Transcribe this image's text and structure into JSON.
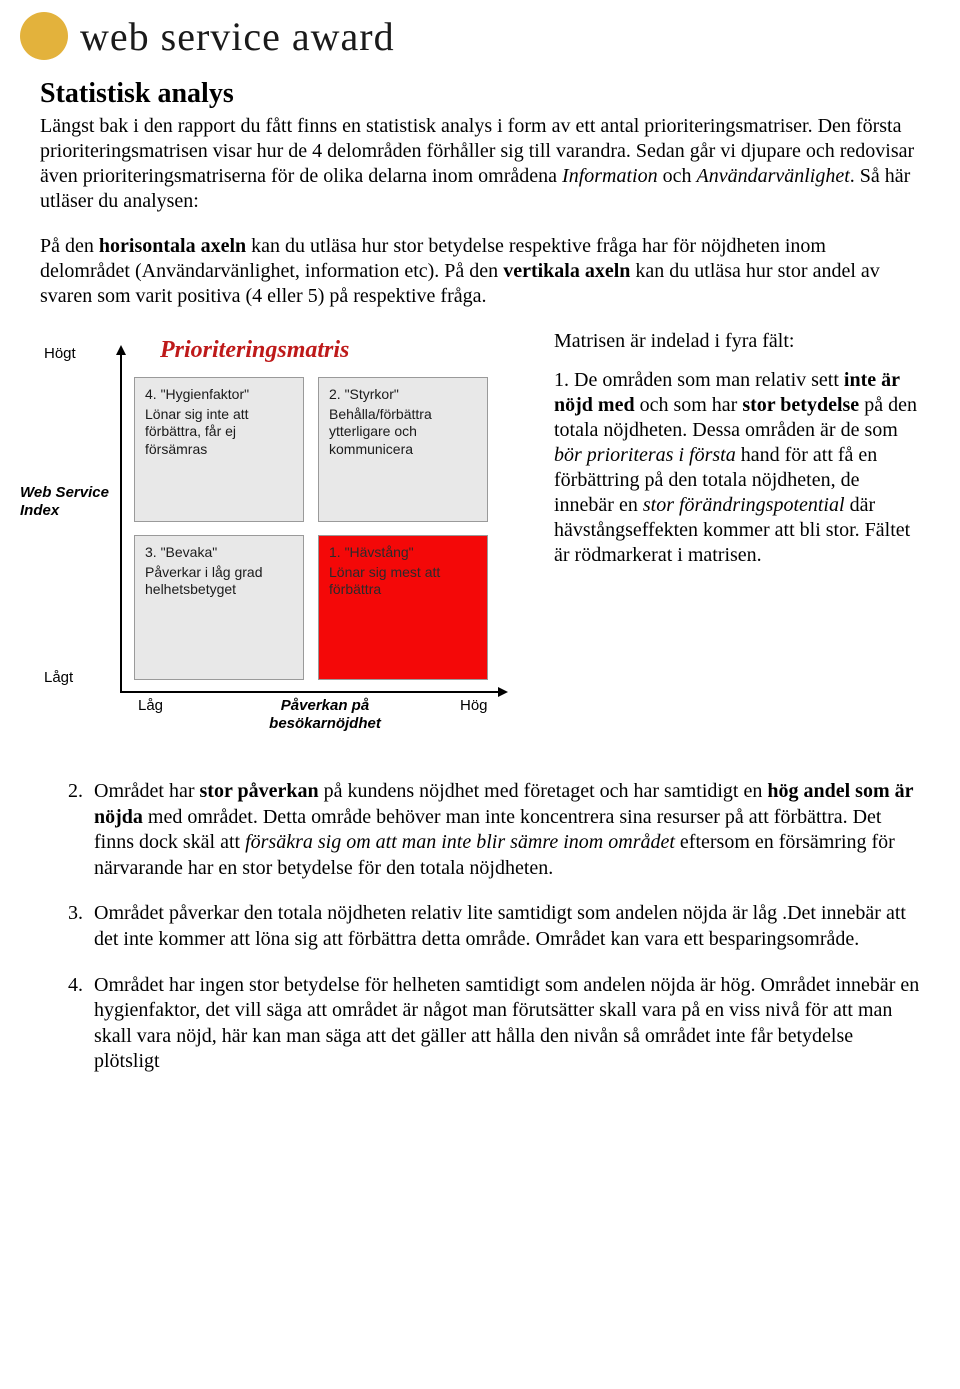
{
  "header": {
    "brand": "web service award",
    "dot_color": "#e3b23c"
  },
  "section_title": "Statistisk analys",
  "intro_plain_1": "Längst bak i den rapport du fått finns en statistisk analys i form av ett antal prioriteringsmatriser. Den första prioriteringsmatrisen visar hur de 4 delområden förhåller sig till varandra. Sedan går vi djupare och redovisar även prioriteringsmatriserna för de olika delarna inom områdena ",
  "intro_italic_1": "Information",
  "intro_plain_2": " och ",
  "intro_italic_2": "Användarvänlighet",
  "intro_plain_3": ". Så här utläser du analysen:",
  "axes_para": {
    "p1": "På den ",
    "b1": "horisontala axeln",
    "p2": " kan du utläsa hur stor betydelse respektive fråga har för nöjdheten inom delområdet (Användarvänlighet, information etc). På den ",
    "b2": "vertikala axeln",
    "p3": " kan du utläsa hur stor andel av svaren som varit positiva (4 eller 5) på respektive fråga."
  },
  "matrix": {
    "title": "Prioriteringsmatris",
    "title_color": "#be1a1a",
    "y_high": "Högt",
    "y_low": "Lågt",
    "y_label": "Web Service Index",
    "x_low": "Låg",
    "x_high": "Hög",
    "x_label": "Påverkan på besökarnöjdhet",
    "quad_bg": "#e8e8e8",
    "quad_border": "#9a9a9a",
    "highlight_bg": "#f40808",
    "q4": {
      "title": "4. \"Hygienfaktor\"",
      "text": "Lönar sig inte att förbättra, får ej försämras"
    },
    "q2": {
      "title": "2. \"Styrkor\"",
      "text": "Behålla/förbättra ytterligare och kommunicera"
    },
    "q3": {
      "title": "3. \"Bevaka\"",
      "text": "Påverkar i låg grad helhetsbetyget"
    },
    "q1": {
      "title": "1. \"Hävstång\"",
      "text": "Lönar sig mest att förbättra"
    }
  },
  "aside": {
    "lead": "Matrisen är indelad i fyra fält:",
    "item1": {
      "n": "1.",
      "a": " De områden som man relativ sett ",
      "b1": "inte är nöjd med",
      "c": " och som har ",
      "b2": "stor betydelse",
      "d": " på den totala nöjdheten. Dessa områden är de som ",
      "i1": "bör prioriteras i första",
      "e": " hand för att få en förbättring på den totala nöjdheten, de innebär en ",
      "i2": "stor förändringspotential",
      "f": " där hävstångseffekten kommer att bli stor. Fältet är rödmarkerat i matrisen."
    }
  },
  "list": {
    "start": 2,
    "item2": {
      "a": "Området har ",
      "b1": "stor påverkan",
      "b": " på kundens nöjdhet med företaget och har samtidigt en ",
      "b2": "hög andel som är nöjda",
      "c": " med området. Detta område behöver man inte koncentrera sina resurser på att förbättra. Det finns dock skäl att ",
      "i1": "försäkra sig om att man inte blir sämre inom området",
      "d": " eftersom en försämring för närvarande har en stor betydelse för den totala nöjdheten."
    },
    "item3": "Området påverkar den totala nöjdheten relativ lite samtidigt som andelen nöjda är låg .Det innebär att det inte kommer att löna sig att förbättra detta område. Området kan vara ett besparingsområde.",
    "item4": "Området har ingen stor betydelse för helheten samtidigt som andelen nöjda är hög. Området innebär en hygienfaktor, det vill säga att området är något man förutsätter skall vara på en viss nivå för att man skall vara nöjd, här kan man säga att det gäller att hålla den nivån så området inte får betydelse plötsligt"
  }
}
